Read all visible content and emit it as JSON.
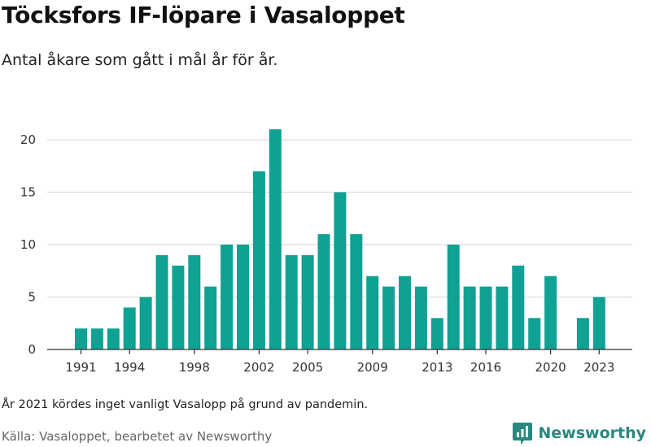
{
  "title": "Töcksfors IF-löpare i Vasaloppet",
  "subtitle": "Antal åkare som gått i mål år för år.",
  "note": "År 2021 kördes inget vanligt Vasalopp på grund av pandemin.",
  "source": "Källa: Vasaloppet, bearbetet av Newsworthy",
  "logo_text": "Newsworthy",
  "logo_icon": "newsworthy-logo-icon",
  "colors": {
    "bar": "#0fa193",
    "grid": "#dddddd",
    "axis": "#333333",
    "logo": "#28897f"
  },
  "chart_data": {
    "type": "bar",
    "title": "Töcksfors IF-löpare i Vasaloppet",
    "subtitle": "Antal åkare som gått i mål år för år.",
    "xlabel": "",
    "ylabel": "",
    "x": [
      1991,
      1992,
      1993,
      1994,
      1995,
      1996,
      1997,
      1998,
      1999,
      2000,
      2001,
      2002,
      2003,
      2004,
      2005,
      2006,
      2007,
      2008,
      2009,
      2010,
      2011,
      2012,
      2013,
      2014,
      2015,
      2016,
      2017,
      2018,
      2019,
      2020,
      2021,
      2022,
      2023
    ],
    "values": [
      2,
      2,
      2,
      4,
      5,
      9,
      8,
      9,
      6,
      10,
      10,
      17,
      21,
      9,
      9,
      11,
      15,
      11,
      7,
      6,
      7,
      6,
      3,
      10,
      6,
      6,
      6,
      8,
      3,
      7,
      0,
      3,
      5
    ],
    "x_ticks": [
      1991,
      1994,
      1998,
      2002,
      2005,
      2009,
      2013,
      2016,
      2020,
      2023
    ],
    "y_ticks": [
      0,
      5,
      10,
      15,
      20
    ],
    "ylim": [
      0,
      22
    ],
    "grid": true
  }
}
